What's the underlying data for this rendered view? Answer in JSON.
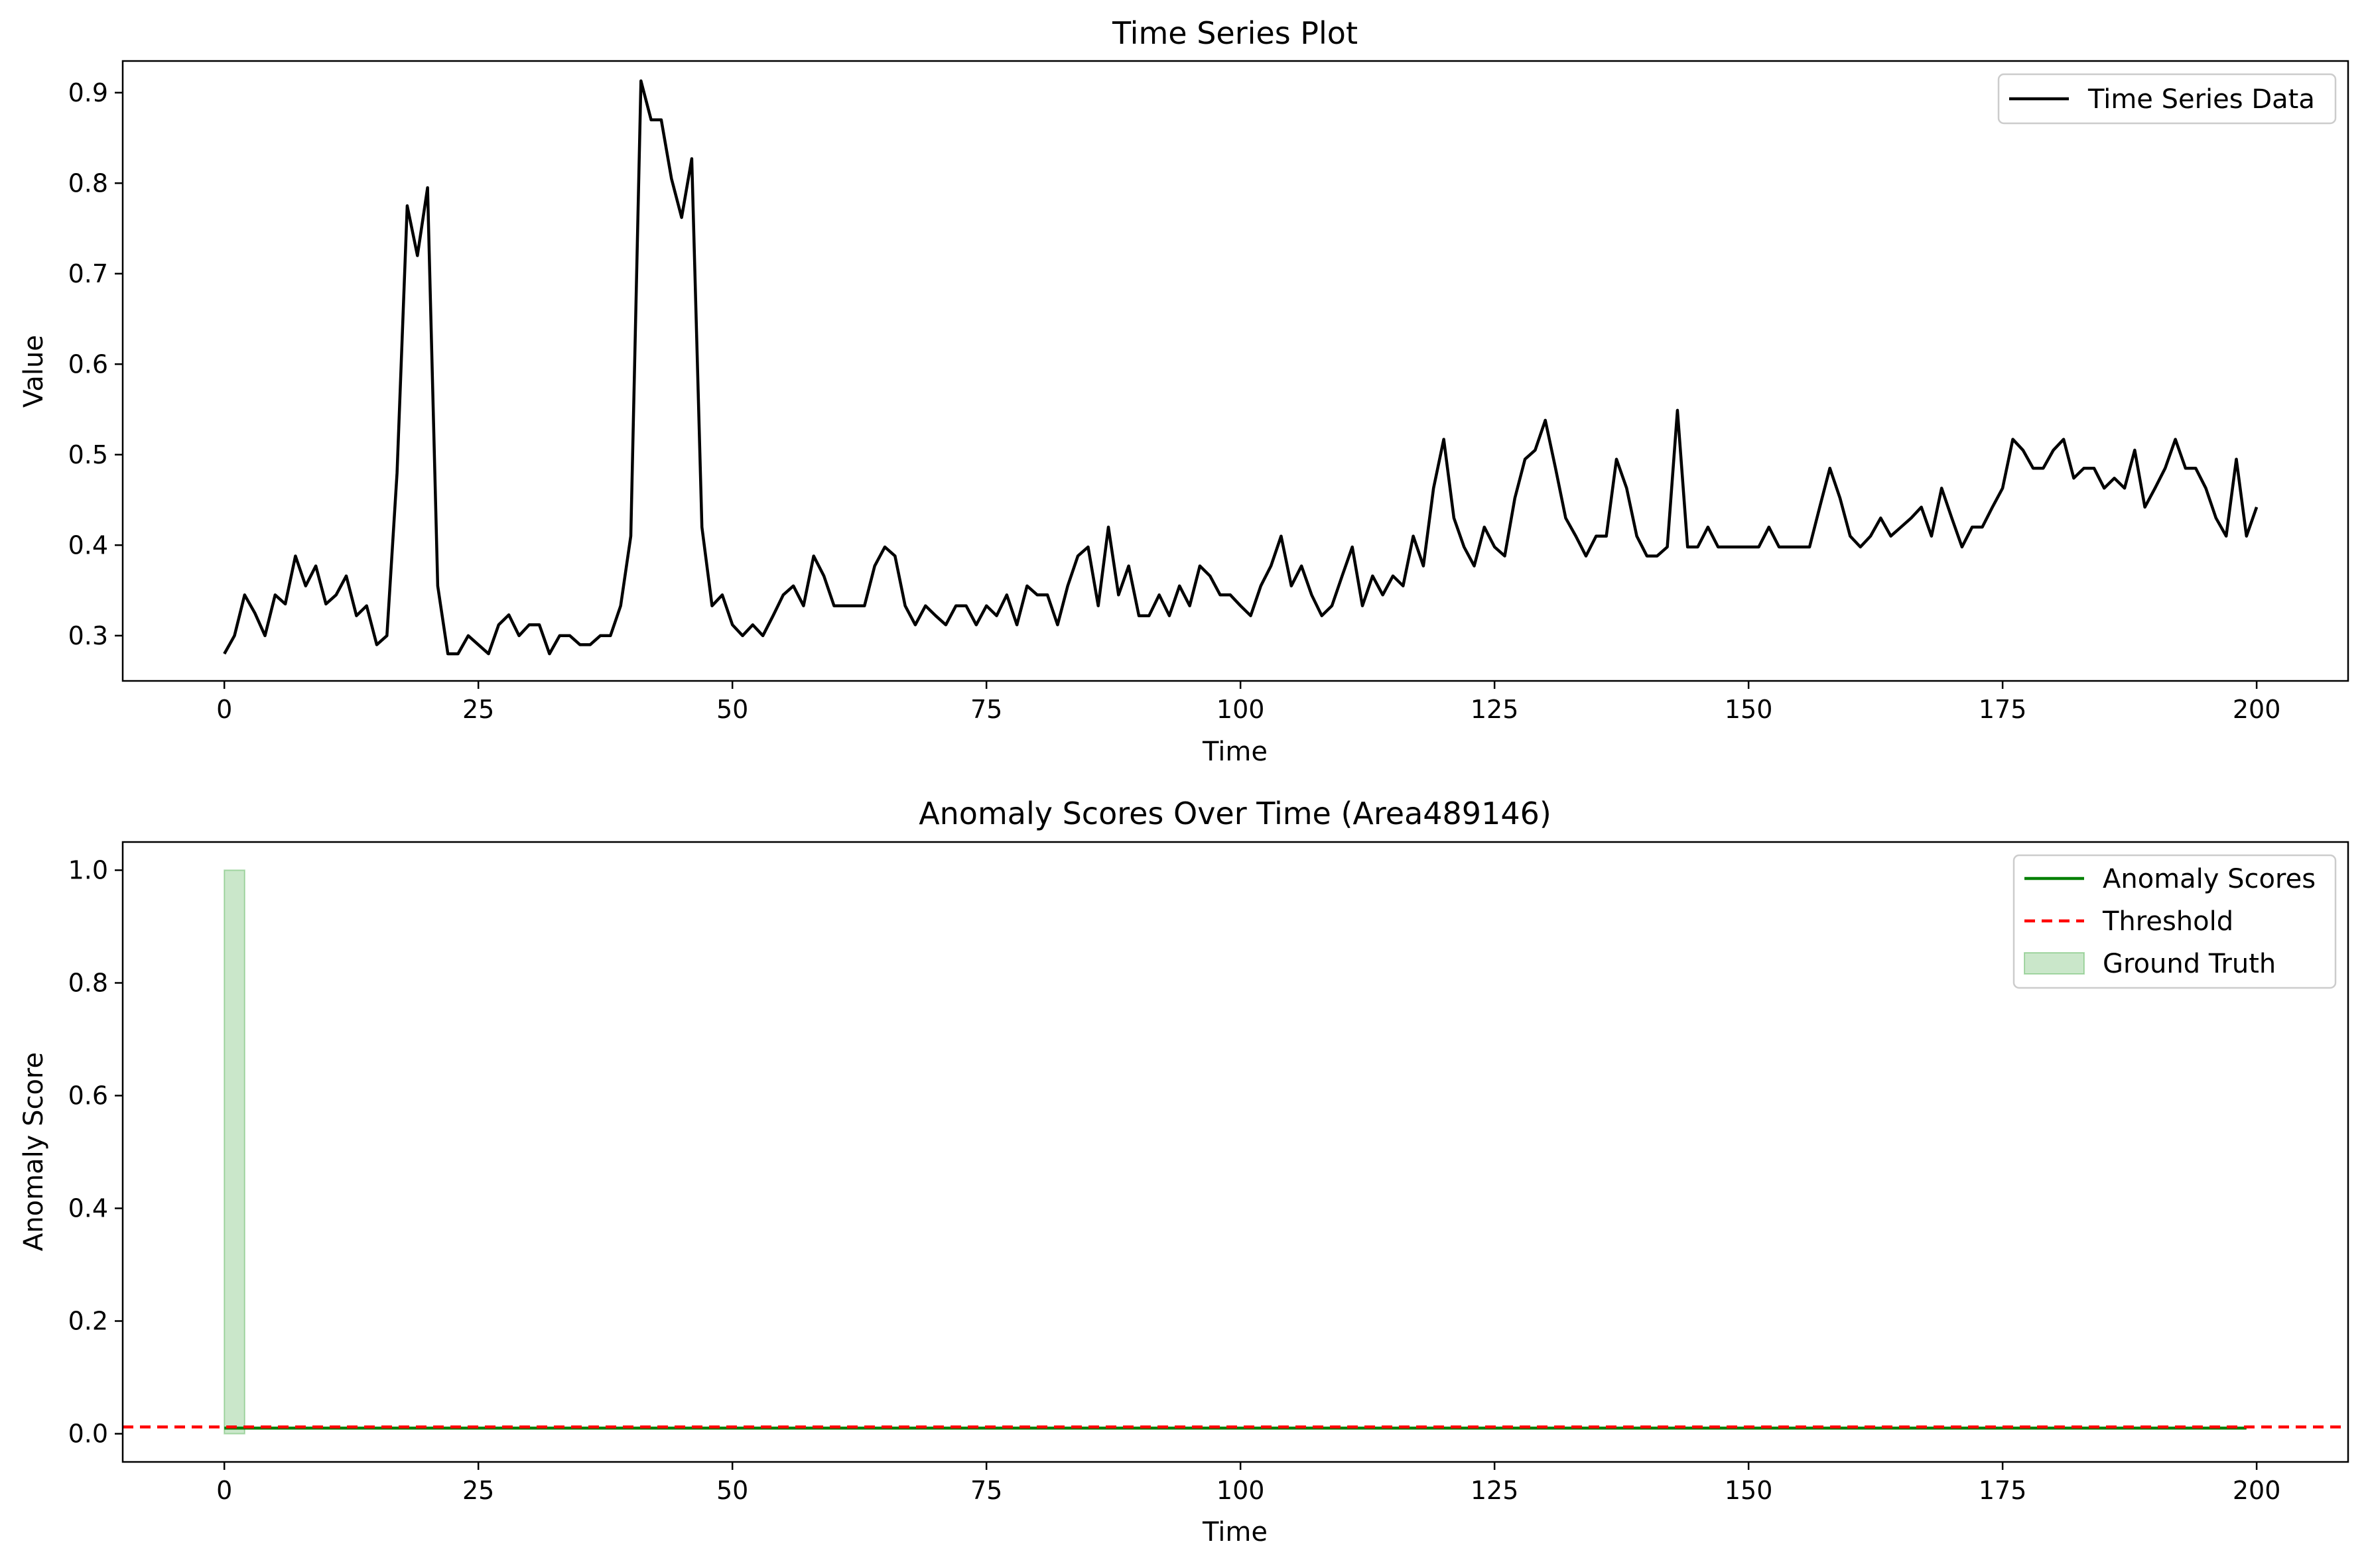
{
  "colors": {
    "series_line": "#000000",
    "anomaly_scores": "#008000",
    "threshold": "#ff0000",
    "ground_truth": "#2ca02c"
  },
  "chart_data": [
    {
      "type": "line",
      "title": "Time Series Plot",
      "xlabel": "Time",
      "ylabel": "Value",
      "xlim": [
        -10,
        209
      ],
      "ylim": [
        0.25,
        0.935
      ],
      "xticks": [
        0,
        25,
        50,
        75,
        100,
        125,
        150,
        175,
        200
      ],
      "xtick_labels": [
        "0",
        "25",
        "50",
        "75",
        "100",
        "125",
        "150",
        "175",
        "200"
      ],
      "yticks": [
        0.3,
        0.4,
        0.5,
        0.6,
        0.7,
        0.8,
        0.9
      ],
      "ytick_labels": [
        "0.3",
        "0.4",
        "0.5",
        "0.6",
        "0.7",
        "0.8",
        "0.9"
      ],
      "legend_position": "top-right",
      "series": [
        {
          "name": "Time Series Data",
          "color": "#000000",
          "values": [
            0.28,
            0.3,
            0.345,
            0.325,
            0.3,
            0.345,
            0.335,
            0.388,
            0.355,
            0.377,
            0.335,
            0.345,
            0.366,
            0.322,
            0.333,
            0.29,
            0.3,
            0.48,
            0.775,
            0.72,
            0.795,
            0.355,
            0.28,
            0.28,
            0.3,
            0.29,
            0.28,
            0.312,
            0.323,
            0.3,
            0.312,
            0.312,
            0.28,
            0.3,
            0.3,
            0.29,
            0.29,
            0.3,
            0.3,
            0.333,
            0.41,
            0.913,
            0.87,
            0.87,
            0.805,
            0.762,
            0.827,
            0.42,
            0.333,
            0.345,
            0.312,
            0.3,
            0.312,
            0.3,
            0.322,
            0.345,
            0.355,
            0.333,
            0.388,
            0.366,
            0.333,
            0.333,
            0.333,
            0.333,
            0.377,
            0.398,
            0.388,
            0.333,
            0.312,
            0.333,
            0.322,
            0.312,
            0.333,
            0.333,
            0.312,
            0.333,
            0.322,
            0.345,
            0.312,
            0.355,
            0.345,
            0.345,
            0.312,
            0.355,
            0.388,
            0.398,
            0.333,
            0.42,
            0.345,
            0.377,
            0.322,
            0.322,
            0.345,
            0.322,
            0.355,
            0.333,
            0.377,
            0.366,
            0.345,
            0.345,
            0.333,
            0.322,
            0.355,
            0.377,
            0.41,
            0.355,
            0.377,
            0.345,
            0.322,
            0.333,
            0.366,
            0.398,
            0.333,
            0.366,
            0.345,
            0.366,
            0.355,
            0.41,
            0.377,
            0.463,
            0.517,
            0.43,
            0.398,
            0.377,
            0.42,
            0.398,
            0.388,
            0.452,
            0.495,
            0.505,
            0.538,
            0.485,
            0.43,
            0.41,
            0.388,
            0.41,
            0.41,
            0.495,
            0.463,
            0.41,
            0.388,
            0.388,
            0.398,
            0.549,
            0.398,
            0.398,
            0.42,
            0.398,
            0.398,
            0.398,
            0.398,
            0.398,
            0.42,
            0.398,
            0.398,
            0.398,
            0.398,
            0.442,
            0.485,
            0.452,
            0.41,
            0.398,
            0.41,
            0.43,
            0.41,
            0.42,
            0.43,
            0.442,
            0.41,
            0.463,
            0.43,
            0.398,
            0.42,
            0.42,
            0.442,
            0.463,
            0.517,
            0.505,
            0.485,
            0.485,
            0.505,
            0.517,
            0.474,
            0.485,
            0.485,
            0.463,
            0.474,
            0.463,
            0.505,
            0.442,
            0.463,
            0.485,
            0.517,
            0.485,
            0.485,
            0.463,
            0.43,
            0.41,
            0.495,
            0.41,
            0.442
          ]
        }
      ]
    },
    {
      "type": "line",
      "title": "Anomaly Scores Over Time (Area489146)",
      "xlabel": "Time",
      "ylabel": "Anomaly Score",
      "xlim": [
        -10,
        209
      ],
      "ylim": [
        -0.05,
        1.05
      ],
      "xticks": [
        0,
        25,
        50,
        75,
        100,
        125,
        150,
        175,
        200
      ],
      "xtick_labels": [
        "0",
        "25",
        "50",
        "75",
        "100",
        "125",
        "150",
        "175",
        "200"
      ],
      "yticks": [
        0.0,
        0.2,
        0.4,
        0.6,
        0.8,
        1.0
      ],
      "ytick_labels": [
        "0.0",
        "0.2",
        "0.4",
        "0.6",
        "0.8",
        "1.0"
      ],
      "legend_position": "top-right",
      "series": [
        {
          "name": "Anomaly Scores",
          "color": "#008000",
          "constant_value": 0.01,
          "x_range": [
            0,
            199
          ]
        },
        {
          "name": "Threshold",
          "color": "#ff0000",
          "style": "dashed",
          "value": 0.012
        },
        {
          "name": "Ground Truth",
          "color": "#2ca02c",
          "kind": "span",
          "x_range": [
            0,
            2
          ],
          "y_range": [
            0,
            1
          ]
        }
      ]
    }
  ]
}
